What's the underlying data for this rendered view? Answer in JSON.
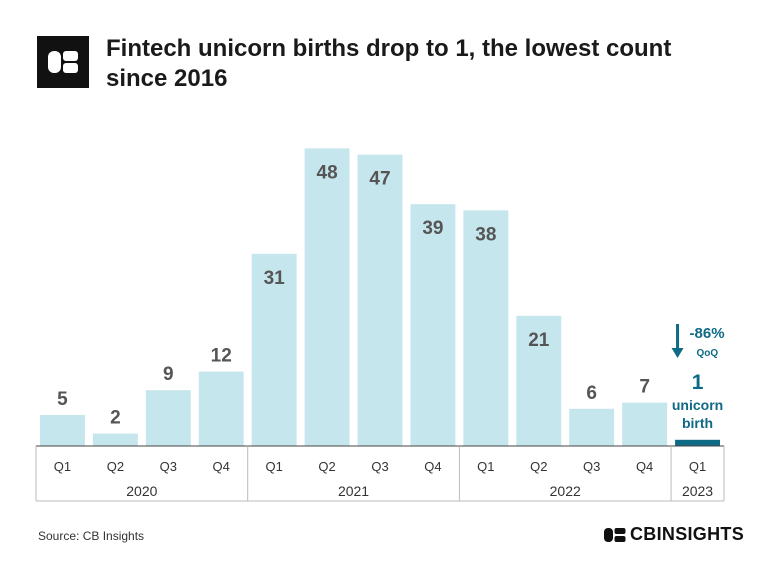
{
  "header": {
    "title": "Fintech unicorn births drop to 1, the lowest count since 2016",
    "logo_icon": "cb-logo-icon"
  },
  "chart_data": {
    "type": "bar",
    "title": "Fintech unicorn births drop to 1, the lowest count since 2016",
    "categories": [
      "Q1",
      "Q2",
      "Q3",
      "Q4",
      "Q1",
      "Q2",
      "Q3",
      "Q4",
      "Q1",
      "Q2",
      "Q3",
      "Q4",
      "Q1"
    ],
    "years": [
      {
        "label": "2020",
        "quarters": 4
      },
      {
        "label": "2021",
        "quarters": 4
      },
      {
        "label": "2022",
        "quarters": 4
      },
      {
        "label": "2023",
        "quarters": 1
      }
    ],
    "values": [
      5,
      2,
      9,
      12,
      31,
      48,
      47,
      39,
      38,
      21,
      6,
      7,
      1
    ],
    "ylim": [
      0,
      50
    ],
    "grid": false,
    "bar_color": "#c5e6ec",
    "highlight_color": "#0f6a86",
    "value_label_color": "#555555",
    "annotation": {
      "change": "-86%",
      "change_sub": "QoQ",
      "value": "1",
      "label_line1": "unicorn",
      "label_line2": "birth"
    }
  },
  "footer": {
    "source": "Source: CB Insights",
    "brand": "CBINSIGHTS"
  }
}
